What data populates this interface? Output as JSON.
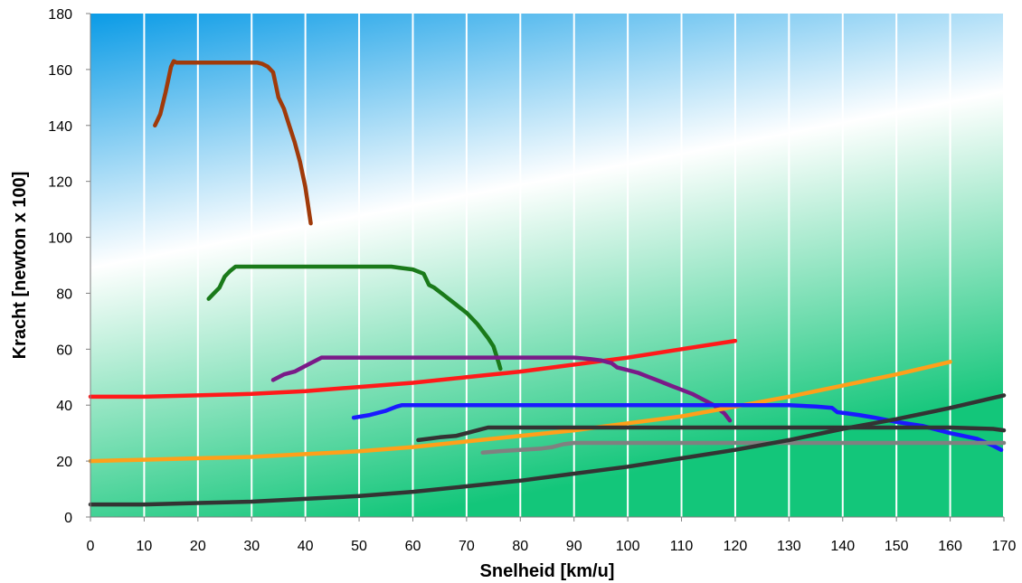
{
  "chart_data": {
    "type": "line",
    "title": "",
    "xlabel": "Snelheid [km/u]",
    "ylabel": "Kracht [newton x 100]",
    "xlim": [
      0,
      170
    ],
    "ylim": [
      0,
      180
    ],
    "xticks": [
      0,
      10,
      20,
      30,
      40,
      50,
      60,
      70,
      80,
      90,
      100,
      110,
      120,
      130,
      140,
      150,
      160,
      170
    ],
    "yticks": [
      0,
      20,
      40,
      60,
      80,
      100,
      120,
      140,
      160,
      180
    ],
    "grid": "vertical",
    "legend": "none",
    "background": {
      "top_color": "#0a9be6",
      "middle_color": "#ffffff",
      "bottom_color": "#13c67a"
    },
    "series": [
      {
        "color": "#a03a0a",
        "points": [
          [
            12,
            140
          ],
          [
            13,
            144
          ],
          [
            14,
            152
          ],
          [
            15,
            161
          ],
          [
            15.5,
            163
          ],
          [
            16,
            162.5
          ],
          [
            20,
            162.5
          ],
          [
            25,
            162.5
          ],
          [
            30,
            162.5
          ],
          [
            31,
            162.5
          ],
          [
            32,
            162
          ],
          [
            33,
            161
          ],
          [
            34,
            159
          ],
          [
            35,
            150
          ],
          [
            36,
            146
          ],
          [
            37,
            140
          ],
          [
            38,
            134
          ],
          [
            39,
            127
          ],
          [
            40,
            118
          ],
          [
            41,
            105
          ]
        ]
      },
      {
        "color": "#1a7a1a",
        "points": [
          [
            22,
            78
          ],
          [
            23,
            80
          ],
          [
            24,
            82
          ],
          [
            25,
            86
          ],
          [
            26,
            88
          ],
          [
            27,
            89.5
          ],
          [
            30,
            89.5
          ],
          [
            40,
            89.5
          ],
          [
            50,
            89.5
          ],
          [
            56,
            89.5
          ],
          [
            58,
            89
          ],
          [
            60,
            88.5
          ],
          [
            62,
            87
          ],
          [
            63,
            83
          ],
          [
            64,
            82
          ],
          [
            66,
            79
          ],
          [
            68,
            76
          ],
          [
            70,
            73
          ],
          [
            72,
            69
          ],
          [
            74,
            64
          ],
          [
            75,
            61
          ],
          [
            76,
            55
          ],
          [
            76.3,
            53
          ]
        ]
      },
      {
        "color": "#ff1a1a",
        "points": [
          [
            0,
            43
          ],
          [
            10,
            43
          ],
          [
            20,
            43.5
          ],
          [
            30,
            44
          ],
          [
            40,
            45
          ],
          [
            50,
            46.5
          ],
          [
            60,
            48
          ],
          [
            70,
            50
          ],
          [
            80,
            52
          ],
          [
            90,
            54.5
          ],
          [
            100,
            57
          ],
          [
            110,
            60
          ],
          [
            120,
            63
          ]
        ]
      },
      {
        "color": "#7a1a88",
        "points": [
          [
            34,
            49
          ],
          [
            36,
            51
          ],
          [
            38,
            52
          ],
          [
            39,
            53
          ],
          [
            40,
            54
          ],
          [
            41,
            55
          ],
          [
            42,
            56
          ],
          [
            43,
            57
          ],
          [
            50,
            57
          ],
          [
            60,
            57
          ],
          [
            70,
            57
          ],
          [
            80,
            57
          ],
          [
            90,
            57
          ],
          [
            93,
            56.5
          ],
          [
            95,
            56
          ],
          [
            97,
            55
          ],
          [
            98,
            53.5
          ],
          [
            100,
            52.5
          ],
          [
            102,
            51.5
          ],
          [
            104,
            50
          ],
          [
            106,
            48.5
          ],
          [
            108,
            47
          ],
          [
            110,
            45.5
          ],
          [
            112,
            44
          ],
          [
            114,
            42
          ],
          [
            116,
            40
          ],
          [
            118,
            37
          ],
          [
            119,
            34.5
          ]
        ]
      },
      {
        "color": "#ffa01a",
        "points": [
          [
            0,
            20
          ],
          [
            10,
            20.5
          ],
          [
            20,
            21
          ],
          [
            30,
            21.5
          ],
          [
            40,
            22.5
          ],
          [
            50,
            23.5
          ],
          [
            60,
            25
          ],
          [
            70,
            27
          ],
          [
            80,
            29
          ],
          [
            90,
            31
          ],
          [
            100,
            33.5
          ],
          [
            110,
            36
          ],
          [
            120,
            39.5
          ],
          [
            130,
            43
          ],
          [
            140,
            47
          ],
          [
            150,
            51
          ],
          [
            160,
            55.5
          ]
        ]
      },
      {
        "color": "#1a1aff",
        "points": [
          [
            49,
            35.5
          ],
          [
            52,
            36.5
          ],
          [
            55,
            38
          ],
          [
            57,
            39.5
          ],
          [
            58,
            40
          ],
          [
            60,
            40
          ],
          [
            70,
            40
          ],
          [
            80,
            40
          ],
          [
            90,
            40
          ],
          [
            100,
            40
          ],
          [
            110,
            40
          ],
          [
            120,
            40
          ],
          [
            130,
            40
          ],
          [
            135,
            39.5
          ],
          [
            138,
            39
          ],
          [
            139,
            37.5
          ],
          [
            141,
            37
          ],
          [
            143,
            36.5
          ],
          [
            146,
            35.5
          ],
          [
            150,
            34
          ],
          [
            155,
            32.5
          ],
          [
            160,
            30
          ],
          [
            165,
            28
          ],
          [
            168,
            25.5
          ],
          [
            169.5,
            24
          ]
        ]
      },
      {
        "color": "#333333",
        "points": [
          [
            61,
            27.5
          ],
          [
            63,
            28
          ],
          [
            65,
            28.5
          ],
          [
            68,
            29
          ],
          [
            70,
            30
          ],
          [
            72,
            31
          ],
          [
            73,
            31.5
          ],
          [
            74,
            32
          ],
          [
            80,
            32
          ],
          [
            90,
            32
          ],
          [
            100,
            32
          ],
          [
            110,
            32
          ],
          [
            120,
            32
          ],
          [
            130,
            32
          ],
          [
            140,
            32
          ],
          [
            150,
            32
          ],
          [
            160,
            32
          ],
          [
            168,
            31.5
          ],
          [
            170,
            31
          ]
        ]
      },
      {
        "color": "#808080",
        "points": [
          [
            73,
            23
          ],
          [
            76,
            23.5
          ],
          [
            80,
            24
          ],
          [
            84,
            24.5
          ],
          [
            86,
            25
          ],
          [
            88,
            26
          ],
          [
            90,
            26.5
          ],
          [
            100,
            26.5
          ],
          [
            110,
            26.5
          ],
          [
            120,
            26.5
          ],
          [
            130,
            26.5
          ],
          [
            140,
            26.5
          ],
          [
            150,
            26.5
          ],
          [
            160,
            26.5
          ],
          [
            170,
            26.5
          ]
        ]
      },
      {
        "color": "#333333",
        "points": [
          [
            0,
            4.5
          ],
          [
            10,
            4.5
          ],
          [
            20,
            5
          ],
          [
            30,
            5.5
          ],
          [
            40,
            6.5
          ],
          [
            50,
            7.5
          ],
          [
            60,
            9
          ],
          [
            70,
            11
          ],
          [
            80,
            13
          ],
          [
            90,
            15.5
          ],
          [
            100,
            18
          ],
          [
            110,
            21
          ],
          [
            120,
            24
          ],
          [
            130,
            27.5
          ],
          [
            140,
            31.5
          ],
          [
            150,
            35
          ],
          [
            160,
            39
          ],
          [
            170,
            43.5
          ]
        ]
      }
    ]
  }
}
